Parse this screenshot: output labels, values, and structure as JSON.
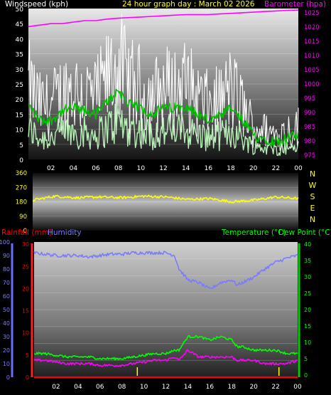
{
  "panel1": {
    "ylabel_left": "Windspeed (kph)",
    "title": "24 hour graph day : March 02 2026",
    "ylabel_right": "Barometer (hpa)",
    "left_ticks": [
      "0",
      "5",
      "10",
      "15",
      "20",
      "25",
      "30",
      "35",
      "40",
      "45",
      "50"
    ],
    "right_ticks": [
      "975",
      "980",
      "985",
      "990",
      "995",
      "1000",
      "1005",
      "1010",
      "1015",
      "1020",
      "1025"
    ],
    "x_ticks": [
      "02",
      "04",
      "06",
      "08",
      "10",
      "12",
      "14",
      "16",
      "18",
      "20",
      "22",
      "00"
    ]
  },
  "panel2": {
    "left_ticks": [
      "0",
      "90",
      "180",
      "270",
      "360"
    ],
    "compass": [
      "N",
      "W",
      "S",
      "E",
      "N"
    ]
  },
  "panel3": {
    "label_rain": "Rainfall (mm)",
    "label_humidity": "Humidity",
    "label_temperature": "Temperature (°C)",
    "label_dewpoint": "Dew Point (°C)",
    "humidity_ticks": [
      "0",
      "10",
      "20",
      "30",
      "40",
      "50",
      "60",
      "70",
      "80",
      "90",
      "100"
    ],
    "rain_ticks": [
      "0",
      "5",
      "10",
      "15",
      "20",
      "25",
      "30"
    ],
    "temp_ticks": [
      "0",
      "5",
      "10",
      "15",
      "20",
      "25",
      "30",
      "35",
      "40"
    ],
    "x_ticks": [
      "02",
      "04",
      "06",
      "08",
      "10",
      "12",
      "14",
      "16",
      "18",
      "20",
      "22",
      "00"
    ]
  },
  "colors": {
    "gust": "#ffffff",
    "wind_avg": "#00c000",
    "wind_light": "#b8f0b8",
    "barometer": "#ff00ff",
    "direction": "#ffff00",
    "humidity": "#7b7bff",
    "temperature": "#00ff00",
    "dewpoint": "#ff00ff",
    "rain": "#ff0000",
    "label_white": "#ffffff",
    "label_yellow": "#ffff00",
    "label_magenta": "#ff00ff",
    "label_green": "#00ff00",
    "label_red": "#ff0000",
    "label_blue": "#7b7bff"
  },
  "chart_data": [
    {
      "type": "line",
      "xlabel": "",
      "ylabel": "Windspeed (kph)",
      "ylabel_right": "Barometer (hpa)",
      "ylim": [
        0,
        50
      ],
      "ylim_right": [
        975,
        1025
      ],
      "x_hours": [
        0,
        1,
        2,
        3,
        4,
        5,
        6,
        7,
        8,
        9,
        10,
        11,
        12,
        13,
        14,
        15,
        16,
        17,
        18,
        19,
        20,
        21,
        22,
        23,
        24
      ],
      "series": [
        {
          "name": "Windspeed (kph)",
          "axis": "left",
          "values": [
            18,
            13,
            13,
            16,
            17,
            16,
            15,
            19,
            23,
            18,
            17,
            15,
            17,
            17,
            18,
            15,
            13,
            14,
            17,
            13,
            8,
            7,
            6,
            7,
            8
          ]
        },
        {
          "name": "Barometer (hpa)",
          "axis": "right",
          "values": [
            1019,
            1019.5,
            1020,
            1020,
            1020.5,
            1021,
            1021,
            1021.5,
            1021.8,
            1022,
            1022.2,
            1022.4,
            1022.6,
            1022.8,
            1023,
            1023,
            1023,
            1023.2,
            1023.4,
            1023.6,
            1023.8,
            1024,
            1024.2,
            1024.4,
            1024.5
          ]
        }
      ]
    },
    {
      "type": "line",
      "ylim": [
        0,
        360
      ],
      "x_hours": [
        0,
        2,
        4,
        6,
        8,
        10,
        12,
        14,
        16,
        18,
        20,
        22,
        24
      ],
      "series": [
        {
          "name": "Wind direction",
          "values": [
            190,
            215,
            205,
            210,
            205,
            215,
            210,
            195,
            200,
            180,
            190,
            210,
            200
          ]
        }
      ]
    },
    {
      "type": "line",
      "x_hours": [
        0,
        1,
        2,
        3,
        4,
        5,
        6,
        7,
        8,
        9,
        10,
        11,
        12,
        12.8,
        13.2,
        14,
        15,
        16,
        17,
        18,
        18.5,
        19,
        20,
        21,
        22,
        23,
        24
      ],
      "series": [
        {
          "name": "Humidity",
          "axis": "humidity",
          "ylim": [
            0,
            100
          ],
          "values": [
            92,
            91,
            90,
            90,
            90,
            89,
            90,
            91,
            91,
            92,
            92,
            92,
            92,
            90,
            80,
            72,
            70,
            65,
            70,
            72,
            68,
            70,
            74,
            80,
            85,
            88,
            90
          ]
        },
        {
          "name": "Temperature (°C)",
          "axis": "temp",
          "ylim": [
            0,
            40
          ],
          "values": [
            7,
            7,
            6.5,
            6,
            6,
            6,
            5.5,
            5.5,
            5.5,
            6,
            6.5,
            7,
            7,
            8,
            8,
            12,
            12,
            11,
            12,
            11,
            9,
            9,
            8,
            8,
            8,
            7,
            7
          ]
        },
        {
          "name": "Dew Point (°C)",
          "axis": "temp",
          "ylim": [
            0,
            40
          ],
          "values": [
            5,
            5,
            4.5,
            4,
            4,
            4,
            3.5,
            3.5,
            3.5,
            4,
            4.5,
            5,
            5,
            6,
            5,
            8,
            6,
            6,
            6,
            6,
            5,
            5,
            5,
            4,
            4,
            4,
            5
          ]
        },
        {
          "name": "Rainfall (mm)",
          "axis": "rain",
          "ylim": [
            0,
            30
          ],
          "values": [
            0,
            0,
            0,
            0,
            0,
            0,
            0,
            0,
            0,
            0,
            0,
            0,
            0,
            0,
            0,
            0,
            0,
            0,
            0,
            0,
            0,
            0,
            0,
            0,
            0,
            0,
            0
          ]
        }
      ]
    }
  ]
}
